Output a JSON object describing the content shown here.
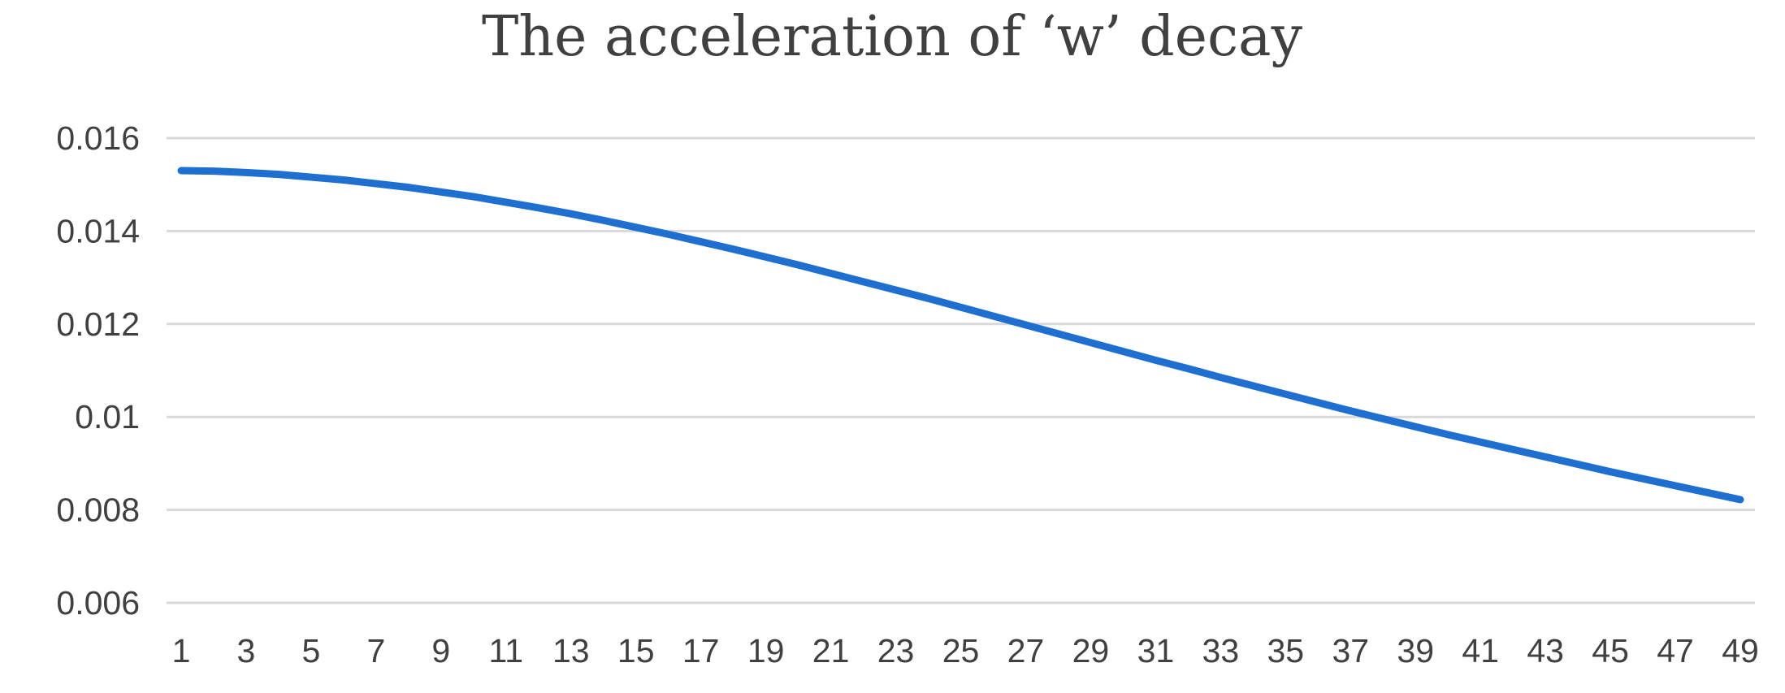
{
  "chart_data": {
    "type": "line",
    "title": "The acceleration of ‘w’ decay",
    "xlabel": "",
    "ylabel": "",
    "x": [
      1,
      2,
      3,
      4,
      5,
      6,
      7,
      8,
      9,
      10,
      11,
      12,
      13,
      14,
      15,
      16,
      17,
      18,
      19,
      20,
      21,
      22,
      23,
      24,
      25,
      26,
      27,
      28,
      29,
      30,
      31,
      32,
      33,
      34,
      35,
      36,
      37,
      38,
      39,
      40,
      41,
      42,
      43,
      44,
      45,
      46,
      47,
      48,
      49
    ],
    "x_tick_labels": [
      "1",
      "3",
      "5",
      "7",
      "9",
      "11",
      "13",
      "15",
      "17",
      "19",
      "21",
      "23",
      "25",
      "27",
      "29",
      "31",
      "33",
      "35",
      "37",
      "39",
      "41",
      "43",
      "45",
      "47",
      "49"
    ],
    "y_tick_labels": [
      "0.006",
      "0.008",
      "0.01",
      "0.012",
      "0.014",
      "0.016"
    ],
    "y_ticks": [
      0.006,
      0.008,
      0.01,
      0.012,
      0.014,
      0.016
    ],
    "ylim": [
      0.006,
      0.016
    ],
    "xlim": [
      1,
      49
    ],
    "grid": true,
    "legend": "none",
    "series": [
      {
        "color": "#1f6fd1",
        "values": [
          0.0153,
          0.01529,
          0.01526,
          0.01522,
          0.01516,
          0.0151,
          0.01502,
          0.01494,
          0.01484,
          0.01474,
          0.01462,
          0.0145,
          0.01437,
          0.01423,
          0.01408,
          0.01393,
          0.01377,
          0.01361,
          0.01344,
          0.01327,
          0.01309,
          0.01291,
          0.01273,
          0.01255,
          0.01236,
          0.01217,
          0.01198,
          0.01179,
          0.0116,
          0.01141,
          0.01122,
          0.01104,
          0.01085,
          0.01067,
          0.01049,
          0.01031,
          0.01013,
          0.00996,
          0.00979,
          0.00962,
          0.00946,
          0.0093,
          0.00914,
          0.00898,
          0.00882,
          0.00867,
          0.00852,
          0.00837,
          0.00822
        ]
      }
    ]
  }
}
